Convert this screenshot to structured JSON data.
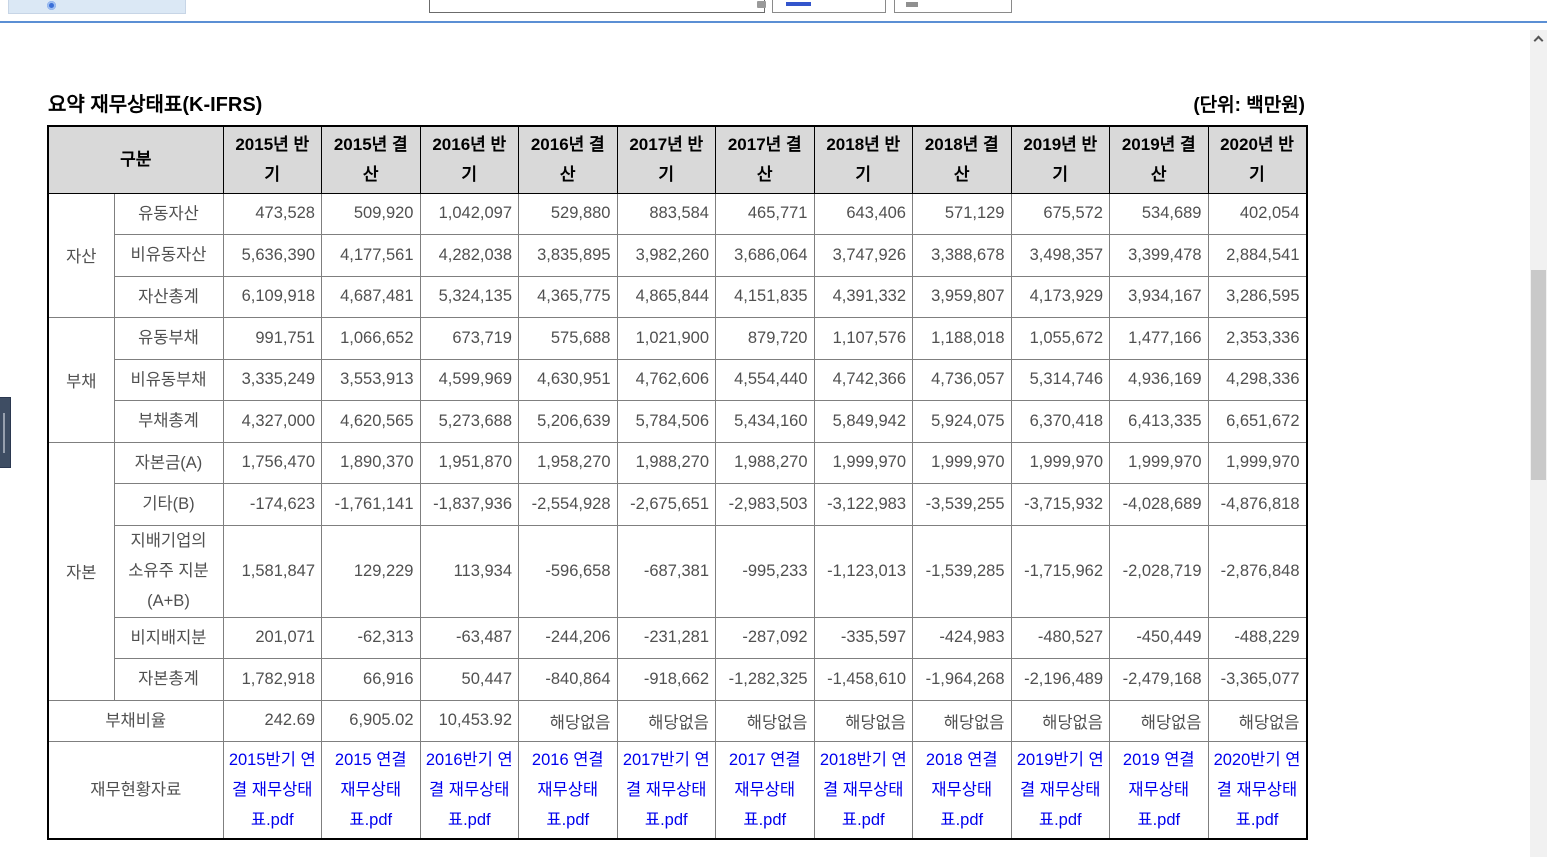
{
  "page": {
    "title": "요약 재무상태표(K-IFRS)",
    "unit_label": "(단위: 백만원)"
  },
  "table": {
    "corner_header": "구분",
    "period_headers": [
      "2015년 반기",
      "2015년 결산",
      "2016년 반기",
      "2016년 결산",
      "2017년 반기",
      "2017년 결산",
      "2018년 반기",
      "2018년 결산",
      "2019년 반기",
      "2019년 결산",
      "2020년 반기"
    ],
    "sections": [
      {
        "group": "자산",
        "rows": [
          {
            "label": "유동자산",
            "values": [
              "473,528",
              "509,920",
              "1,042,097",
              "529,880",
              "883,584",
              "465,771",
              "643,406",
              "571,129",
              "675,572",
              "534,689",
              "402,054"
            ]
          },
          {
            "label": "비유동자산",
            "values": [
              "5,636,390",
              "4,177,561",
              "4,282,038",
              "3,835,895",
              "3,982,260",
              "3,686,064",
              "3,747,926",
              "3,388,678",
              "3,498,357",
              "3,399,478",
              "2,884,541"
            ]
          },
          {
            "label": "자산총계",
            "values": [
              "6,109,918",
              "4,687,481",
              "5,324,135",
              "4,365,775",
              "4,865,844",
              "4,151,835",
              "4,391,332",
              "3,959,807",
              "4,173,929",
              "3,934,167",
              "3,286,595"
            ]
          }
        ]
      },
      {
        "group": "부채",
        "rows": [
          {
            "label": "유동부채",
            "values": [
              "991,751",
              "1,066,652",
              "673,719",
              "575,688",
              "1,021,900",
              "879,720",
              "1,107,576",
              "1,188,018",
              "1,055,672",
              "1,477,166",
              "2,353,336"
            ]
          },
          {
            "label": "비유동부채",
            "values": [
              "3,335,249",
              "3,553,913",
              "4,599,969",
              "4,630,951",
              "4,762,606",
              "4,554,440",
              "4,742,366",
              "4,736,057",
              "5,314,746",
              "4,936,169",
              "4,298,336"
            ]
          },
          {
            "label": "부채총계",
            "values": [
              "4,327,000",
              "4,620,565",
              "5,273,688",
              "5,206,639",
              "5,784,506",
              "5,434,160",
              "5,849,942",
              "5,924,075",
              "6,370,418",
              "6,413,335",
              "6,651,672"
            ]
          }
        ]
      },
      {
        "group": "자본",
        "rows": [
          {
            "label": "자본금(A)",
            "values": [
              "1,756,470",
              "1,890,370",
              "1,951,870",
              "1,958,270",
              "1,988,270",
              "1,988,270",
              "1,999,970",
              "1,999,970",
              "1,999,970",
              "1,999,970",
              "1,999,970"
            ]
          },
          {
            "label": "기타(B)",
            "values": [
              "-174,623",
              "-1,761,141",
              "-1,837,936",
              "-2,554,928",
              "-2,675,651",
              "-2,983,503",
              "-3,122,983",
              "-3,539,255",
              "-3,715,932",
              "-4,028,689",
              "-4,876,818"
            ]
          },
          {
            "label": "지배기업의 소유주 지분 (A+B)",
            "tall": true,
            "values": [
              "1,581,847",
              "129,229",
              "113,934",
              "-596,658",
              "-687,381",
              "-995,233",
              "-1,123,013",
              "-1,539,285",
              "-1,715,962",
              "-2,028,719",
              "-2,876,848"
            ]
          },
          {
            "label": "비지배지분",
            "values": [
              "201,071",
              "-62,313",
              "-63,487",
              "-244,206",
              "-231,281",
              "-287,092",
              "-335,597",
              "-424,983",
              "-480,527",
              "-450,449",
              "-488,229"
            ]
          },
          {
            "label": "자본총계",
            "values": [
              "1,782,918",
              "66,916",
              "50,447",
              "-840,864",
              "-918,662",
              "-1,282,325",
              "-1,458,610",
              "-1,964,268",
              "-2,196,489",
              "-2,479,168",
              "-3,365,077"
            ]
          }
        ]
      }
    ],
    "debt_ratio_row": {
      "label": "부채비율",
      "values": [
        "242.69",
        "6,905.02",
        "10,453.92",
        "해당없음",
        "해당없음",
        "해당없음",
        "해당없음",
        "해당없음",
        "해당없음",
        "해당없음",
        "해당없음"
      ]
    },
    "files_row": {
      "label": "재무현황자료",
      "links": [
        "2015반기 연결 재무상태표.pdf",
        "2015 연결 재무상태표.pdf",
        "2016반기 연결 재무상태표.pdf",
        "2016 연결 재무상태표.pdf",
        "2017반기 연결 재무상태표.pdf",
        "2017 연결 재무상태표.pdf",
        "2018반기 연결 재무상태표.pdf",
        "2018 연결 재무상태표.pdf",
        "2019반기 연결 재무상태표.pdf",
        "2019 연결 재무상태표.pdf",
        "2020반기 연결 재무상태표.pdf"
      ]
    }
  },
  "scrollbar": {
    "up_arrow": "chevron-up"
  },
  "colors": {
    "divider_rule_blue": "#5b8fd4",
    "link_blue": "#0000ee",
    "header_bg": "#d9d9d9",
    "side_handle_bg": "#3e4d63",
    "body_text_gray": "#505050"
  }
}
